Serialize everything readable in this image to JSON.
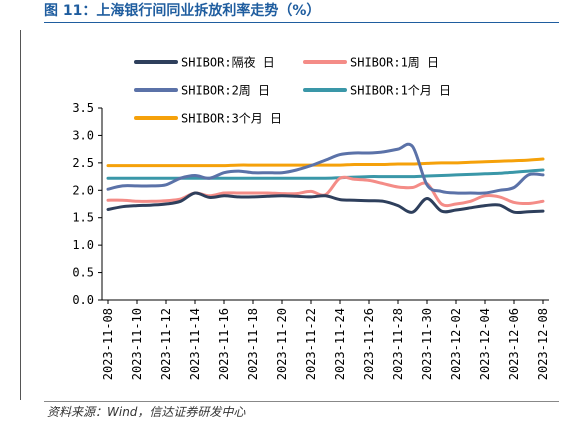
{
  "figure_title": "图 11：上海银行间同业拆放利率走势（%）",
  "source_note": "资料来源：Wind，信达证券研发中心",
  "chart_data": {
    "type": "line",
    "x": [
      "2023-11-08",
      "2023-11-09",
      "2023-11-10",
      "2023-11-11",
      "2023-11-12",
      "2023-11-13",
      "2023-11-14",
      "2023-11-15",
      "2023-11-16",
      "2023-11-17",
      "2023-11-18",
      "2023-11-19",
      "2023-11-20",
      "2023-11-21",
      "2023-11-22",
      "2023-11-23",
      "2023-11-24",
      "2023-11-25",
      "2023-11-26",
      "2023-11-27",
      "2023-11-28",
      "2023-11-29",
      "2023-11-30",
      "2023-12-01",
      "2023-12-02",
      "2023-12-03",
      "2023-12-04",
      "2023-12-05",
      "2023-12-06",
      "2023-12-07",
      "2023-12-08"
    ],
    "x_tick_labels": [
      "2023-11-08",
      "2023-11-10",
      "2023-11-12",
      "2023-11-14",
      "2023-11-16",
      "2023-11-18",
      "2023-11-20",
      "2023-11-22",
      "2023-11-24",
      "2023-11-26",
      "2023-11-28",
      "2023-11-30",
      "2023-12-02",
      "2023-12-04",
      "2023-12-06",
      "2023-12-08"
    ],
    "ylim": [
      0,
      3.5
    ],
    "y_ticks": [
      "0.0",
      "0.5",
      "1.0",
      "1.5",
      "2.0",
      "2.5",
      "3.0",
      "3.5"
    ],
    "grid": false,
    "legend_position": "top",
    "series": [
      {
        "name": "SHIBOR:隔夜 日",
        "color": "#2e3f5c",
        "values": [
          1.65,
          1.7,
          1.72,
          1.73,
          1.75,
          1.8,
          1.95,
          1.87,
          1.9,
          1.88,
          1.88,
          1.89,
          1.9,
          1.89,
          1.88,
          1.9,
          1.83,
          1.82,
          1.81,
          1.8,
          1.72,
          1.6,
          1.85,
          1.62,
          1.64,
          1.68,
          1.72,
          1.73,
          1.6,
          1.61,
          1.62
        ]
      },
      {
        "name": "SHIBOR:1周 日",
        "color": "#f48c87",
        "values": [
          1.82,
          1.82,
          1.8,
          1.8,
          1.81,
          1.84,
          1.95,
          1.9,
          1.95,
          1.95,
          1.95,
          1.95,
          1.94,
          1.94,
          1.98,
          1.92,
          2.22,
          2.2,
          2.18,
          2.12,
          2.06,
          2.05,
          2.12,
          1.75,
          1.75,
          1.8,
          1.9,
          1.88,
          1.78,
          1.76,
          1.8
        ]
      },
      {
        "name": "SHIBOR:2周 日",
        "color": "#5b72a8",
        "values": [
          2.02,
          2.08,
          2.08,
          2.08,
          2.1,
          2.22,
          2.27,
          2.22,
          2.32,
          2.35,
          2.32,
          2.32,
          2.32,
          2.37,
          2.45,
          2.55,
          2.65,
          2.68,
          2.68,
          2.7,
          2.75,
          2.8,
          2.1,
          1.98,
          1.95,
          1.95,
          1.95,
          2.0,
          2.05,
          2.28,
          2.28
        ]
      },
      {
        "name": "SHIBOR:1个月 日",
        "color": "#3a97a8",
        "values": [
          2.22,
          2.22,
          2.22,
          2.22,
          2.22,
          2.22,
          2.22,
          2.22,
          2.22,
          2.22,
          2.22,
          2.22,
          2.22,
          2.22,
          2.22,
          2.22,
          2.23,
          2.24,
          2.25,
          2.25,
          2.25,
          2.25,
          2.26,
          2.27,
          2.28,
          2.29,
          2.3,
          2.31,
          2.33,
          2.35,
          2.37
        ]
      },
      {
        "name": "SHIBOR:3个月 日",
        "color": "#f5a10a",
        "values": [
          2.45,
          2.45,
          2.45,
          2.45,
          2.45,
          2.45,
          2.45,
          2.45,
          2.45,
          2.46,
          2.46,
          2.46,
          2.46,
          2.46,
          2.46,
          2.46,
          2.46,
          2.47,
          2.47,
          2.47,
          2.48,
          2.48,
          2.49,
          2.5,
          2.5,
          2.51,
          2.52,
          2.53,
          2.54,
          2.55,
          2.57
        ]
      }
    ]
  }
}
